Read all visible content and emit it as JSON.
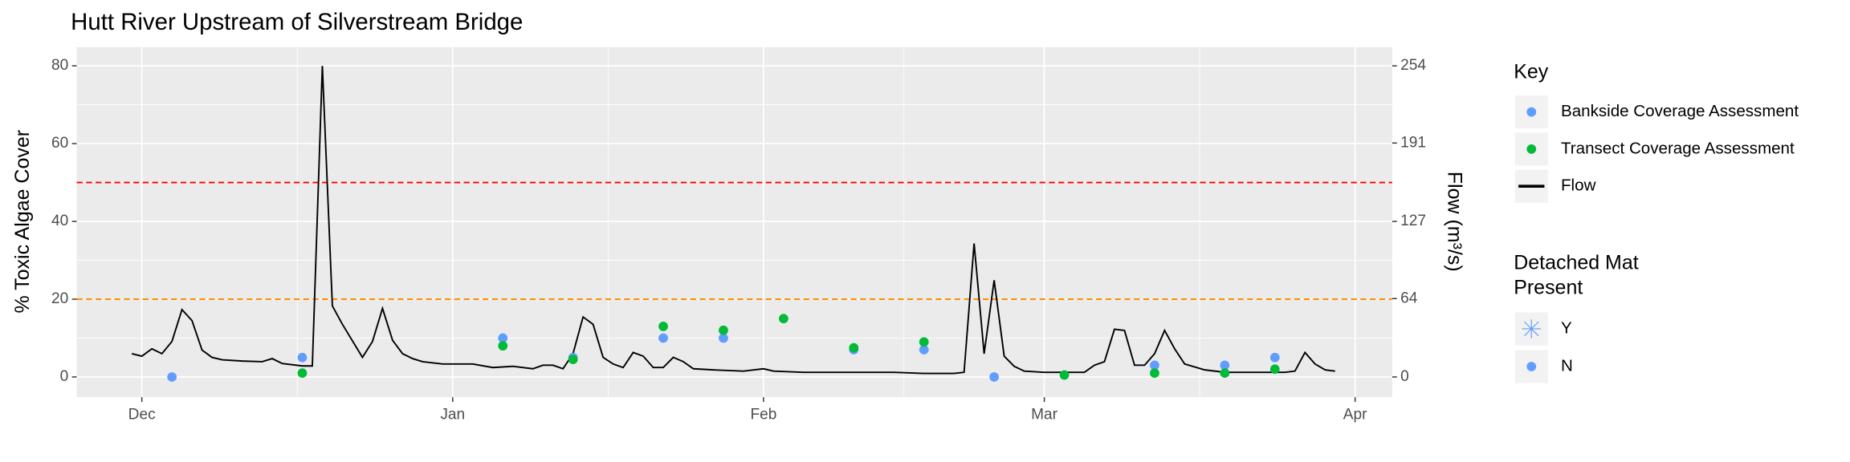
{
  "chart_data": {
    "type": "combo",
    "title": "Hutt River Upstream of Silverstream Bridge",
    "ylabel": "% Toxic Algae Cover",
    "y2label": "Flow (m³/s)",
    "xlim": [
      -6.5,
      124.7
    ],
    "xticks": [
      {
        "value": 0,
        "label": "Dec"
      },
      {
        "value": 31,
        "label": "Jan"
      },
      {
        "value": 62,
        "label": "Feb"
      },
      {
        "value": 90,
        "label": "Mar"
      },
      {
        "value": 121,
        "label": "Apr"
      }
    ],
    "ylim": [
      -5.2,
      84.8
    ],
    "yticks": [
      0,
      20,
      40,
      60,
      80
    ],
    "y2lim": [
      -16.5,
      269.3
    ],
    "y2ticks": [
      0,
      64,
      127,
      191,
      254
    ],
    "grid": true,
    "reference_lines": [
      {
        "value": 50,
        "color": "#FF0000"
      },
      {
        "value": 20,
        "color": "#FF8C00"
      }
    ],
    "legend_title": "Key",
    "series": [
      {
        "name": "Bankside Coverage Assessment",
        "color": "#619CFF",
        "type": "scatter",
        "x": [
          3,
          16,
          36,
          43,
          52,
          58,
          71,
          78,
          85,
          101,
          108,
          113
        ],
        "values": [
          0,
          5,
          10,
          5,
          10,
          10,
          7,
          7,
          0,
          3,
          3,
          5
        ]
      },
      {
        "name": "Transect Coverage Assessment",
        "color": "#00BA38",
        "type": "scatter",
        "x": [
          16,
          36,
          43,
          52,
          58,
          64,
          71,
          78,
          92,
          101,
          108,
          113
        ],
        "values": [
          1,
          8,
          4.5,
          13,
          12,
          15,
          7.5,
          9,
          0.5,
          1,
          1,
          2
        ]
      },
      {
        "name": "Flow",
        "color": "#000000",
        "type": "line",
        "axis": "y2",
        "x": [
          -1,
          0,
          1,
          2,
          3,
          4,
          5,
          6,
          7,
          8,
          10,
          12,
          13,
          14,
          16,
          17,
          18,
          19,
          20,
          22,
          23,
          24,
          25,
          26,
          27,
          28,
          30,
          33,
          35,
          37,
          39,
          40,
          41,
          42,
          43,
          44,
          45,
          46,
          47,
          48,
          49,
          50,
          51,
          52,
          53,
          54,
          55,
          57,
          60,
          62,
          63,
          66,
          70,
          75,
          78,
          81,
          82,
          83,
          84,
          85,
          86,
          87,
          88,
          90,
          94,
          95,
          96,
          97,
          98,
          99,
          100,
          101,
          102,
          103,
          104,
          106,
          108,
          114,
          115,
          116,
          117,
          118,
          119
        ],
        "values": [
          19,
          17,
          23,
          19,
          29,
          55,
          46,
          22,
          16,
          14,
          13,
          12.5,
          15,
          11,
          9,
          9,
          254,
          58,
          43,
          16,
          29,
          56,
          30,
          19,
          15,
          12.5,
          10.6,
          10.6,
          7.7,
          8.7,
          6.7,
          9.6,
          9.6,
          6.7,
          19,
          49,
          43,
          16,
          10.6,
          7.7,
          20,
          17,
          7.7,
          7.7,
          16,
          12.5,
          6.7,
          5.8,
          4.8,
          6.7,
          4.8,
          3.8,
          3.8,
          3.8,
          2.9,
          2.9,
          3.8,
          109,
          19,
          79,
          17,
          8.7,
          4.8,
          3.8,
          3.8,
          9.6,
          12.5,
          39,
          38,
          9.6,
          9.6,
          19,
          38,
          23,
          10.6,
          5.8,
          3.8,
          3.8,
          4.8,
          20,
          10.6,
          5.8,
          4.8
        ]
      }
    ],
    "marker_legend": {
      "title": [
        "Detached Mat",
        "Present"
      ],
      "entries": [
        "Y",
        "N"
      ]
    }
  }
}
